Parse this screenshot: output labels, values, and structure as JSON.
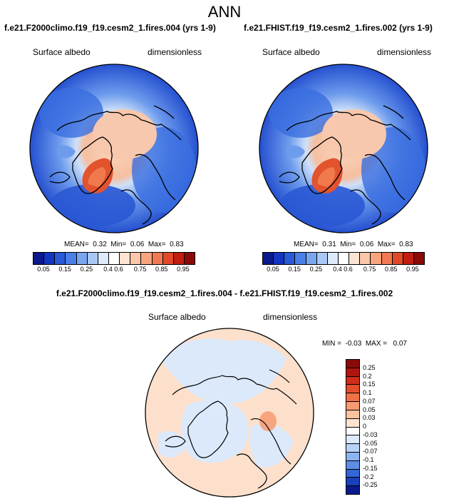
{
  "main_title": "ANN",
  "panels": [
    {
      "case_title": "f.e21.F2000climo.f19_f19.cesm2_1.fires.004 (yrs 1-9)",
      "var_name": "Surface albedo",
      "units": "dimensionless",
      "stats": "MEAN=  0.32  Min=  0.06  Max=  0.83"
    },
    {
      "case_title": "f.e21.FHIST.f19_f19.cesm2_1.fires.002 (yrs 1-9)",
      "var_name": "Surface albedo",
      "units": "dimensionless",
      "stats": "MEAN=  0.31  Min=  0.06  Max=  0.83"
    }
  ],
  "colorbar_top": {
    "ticks": [
      "0.05",
      "0.15",
      "0.25",
      "0.4",
      "0.6",
      "0.75",
      "0.85",
      "0.95"
    ],
    "colors": [
      "#0a1a8c",
      "#1335c0",
      "#2a5ad8",
      "#4a80e6",
      "#7aa6f0",
      "#aac8f6",
      "#dceafb",
      "#ffffff",
      "#fde4d2",
      "#fbc7a8",
      "#f8a57e",
      "#f27a52",
      "#e04a2a",
      "#c01e10",
      "#8a0a08"
    ]
  },
  "diff": {
    "title": "f.e21.F2000climo.f19_f19.cesm2_1.fires.004 - f.e21.FHIST.f19_f19.cesm2_1.fires.002",
    "var_name": "Surface albedo",
    "units": "dimensionless",
    "minmax": "MIN =  -0.03  MAX =   0.07",
    "colorbar": {
      "ticks": [
        "0.25",
        "0.2",
        "0.15",
        "0.1",
        "0.07",
        "0.05",
        "0.03",
        "0",
        "-0.03",
        "-0.05",
        "-0.07",
        "-0.1",
        "-0.15",
        "-0.2",
        "-0.25"
      ],
      "colors": [
        "#8a0a08",
        "#b0160e",
        "#d02c18",
        "#e44d2d",
        "#f07048",
        "#f79a70",
        "#fbc3a0",
        "#fde5d2",
        "#ffffff",
        "#dceafb",
        "#b7d2f7",
        "#8cb4ef",
        "#5e8fe4",
        "#3366d6",
        "#1a40bc",
        "#0a1a8c"
      ]
    }
  },
  "colors": {
    "ocean_blue": "#2f63d8",
    "land_blue": "#5b8fe8",
    "ice_peach": "#f7c2a2",
    "greenland_red": "#e2532e",
    "coast": "#000000",
    "diff_blue": "#d8e8fb",
    "diff_peach": "#fde0cc"
  }
}
